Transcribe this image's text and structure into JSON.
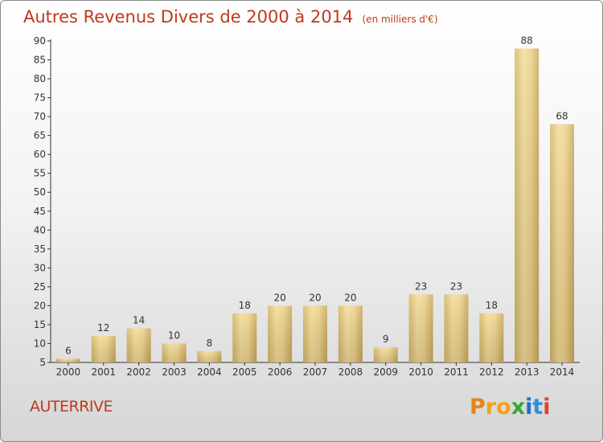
{
  "chart_data": {
    "type": "bar",
    "title": "Autres Revenus Divers de 2000 à 2014",
    "subtitle": "(en milliers d'€)",
    "categories": [
      "2000",
      "2001",
      "2002",
      "2003",
      "2004",
      "2005",
      "2006",
      "2007",
      "2008",
      "2009",
      "2010",
      "2011",
      "2012",
      "2013",
      "2014"
    ],
    "values": [
      6,
      12,
      14,
      10,
      8,
      18,
      20,
      20,
      20,
      9,
      23,
      23,
      18,
      88,
      68
    ],
    "ylim": [
      5,
      90
    ],
    "yticks": [
      5,
      10,
      15,
      20,
      25,
      30,
      35,
      40,
      45,
      50,
      55,
      60,
      65,
      70,
      75,
      80,
      85,
      90
    ],
    "grid": false,
    "bar_color": "#e6c978"
  },
  "footer": {
    "commune": "AUTERRIVE",
    "logo": "Proxiti"
  }
}
